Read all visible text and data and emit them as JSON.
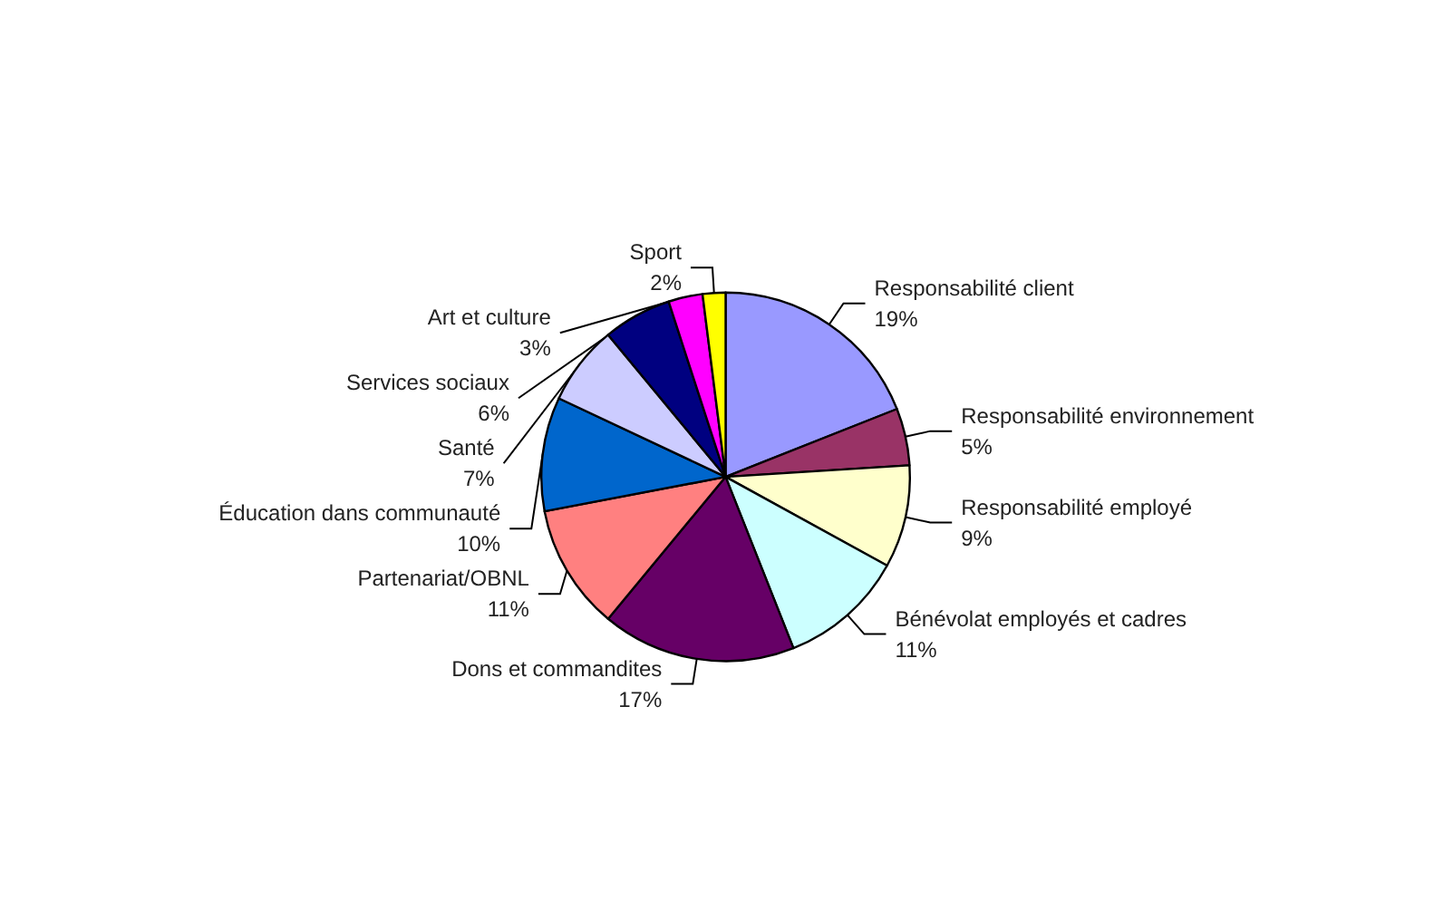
{
  "chart_data": {
    "type": "pie",
    "categories": [
      "Responsabilité client",
      "Responsabilité environnement",
      "Responsabilité employé",
      "Bénévolat employés et cadres",
      "Dons et commandites",
      "Partenariat/OBNL",
      "Éducation dans communauté",
      "Santé",
      "Services sociaux",
      "Art et culture",
      "Sport"
    ],
    "values": [
      19,
      5,
      9,
      11,
      17,
      11,
      10,
      7,
      6,
      3,
      2
    ],
    "value_labels": [
      "19%",
      "5%",
      "9%",
      "11%",
      "17%",
      "11%",
      "10%",
      "7%",
      "6%",
      "3%",
      "2%"
    ],
    "colors": [
      "#9999ff",
      "#993366",
      "#ffffcc",
      "#ccffff",
      "#660066",
      "#ff8080",
      "#0066cc",
      "#ccccff",
      "#000080",
      "#ff00ff",
      "#ffff00"
    ],
    "legend": false
  }
}
